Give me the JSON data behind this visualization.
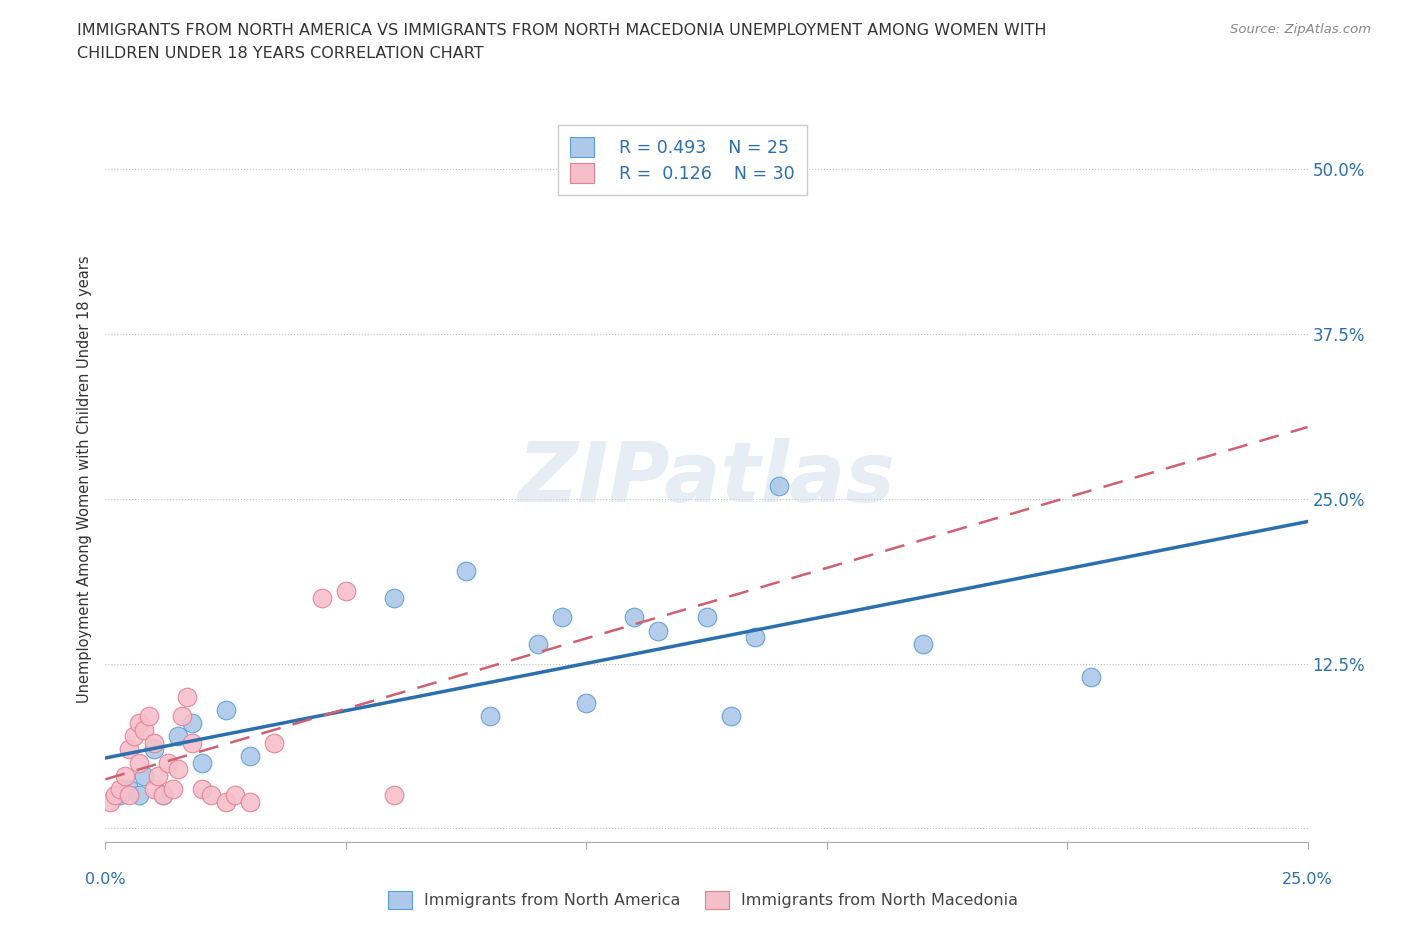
{
  "title_line1": "IMMIGRANTS FROM NORTH AMERICA VS IMMIGRANTS FROM NORTH MACEDONIA UNEMPLOYMENT AMONG WOMEN WITH",
  "title_line2": "CHILDREN UNDER 18 YEARS CORRELATION CHART",
  "source": "Source: ZipAtlas.com",
  "ylabel": "Unemployment Among Women with Children Under 18 years",
  "xlim": [
    0.0,
    0.25
  ],
  "ylim": [
    -0.01,
    0.54
  ],
  "yticks": [
    0.0,
    0.125,
    0.25,
    0.375,
    0.5
  ],
  "ytick_labels_right": [
    "",
    "12.5%",
    "25.0%",
    "37.5%",
    "50.0%"
  ],
  "xticks": [
    0.0,
    0.05,
    0.1,
    0.15,
    0.2,
    0.25
  ],
  "blue_scatter_x": [
    0.003,
    0.005,
    0.007,
    0.008,
    0.01,
    0.012,
    0.015,
    0.018,
    0.02,
    0.025,
    0.03,
    0.06,
    0.075,
    0.08,
    0.09,
    0.095,
    0.1,
    0.11,
    0.115,
    0.125,
    0.13,
    0.135,
    0.14,
    0.17,
    0.205
  ],
  "blue_scatter_y": [
    0.025,
    0.03,
    0.025,
    0.04,
    0.06,
    0.025,
    0.07,
    0.08,
    0.05,
    0.09,
    0.055,
    0.175,
    0.195,
    0.085,
    0.14,
    0.16,
    0.095,
    0.16,
    0.15,
    0.16,
    0.085,
    0.145,
    0.26,
    0.14,
    0.115
  ],
  "pink_scatter_x": [
    0.001,
    0.002,
    0.003,
    0.004,
    0.005,
    0.005,
    0.006,
    0.007,
    0.007,
    0.008,
    0.009,
    0.01,
    0.01,
    0.011,
    0.012,
    0.013,
    0.014,
    0.015,
    0.016,
    0.017,
    0.018,
    0.02,
    0.022,
    0.025,
    0.027,
    0.03,
    0.035,
    0.045,
    0.05,
    0.06
  ],
  "pink_scatter_y": [
    0.02,
    0.025,
    0.03,
    0.04,
    0.025,
    0.06,
    0.07,
    0.05,
    0.08,
    0.075,
    0.085,
    0.065,
    0.03,
    0.04,
    0.025,
    0.05,
    0.03,
    0.045,
    0.085,
    0.1,
    0.065,
    0.03,
    0.025,
    0.02,
    0.025,
    0.02,
    0.065,
    0.175,
    0.18,
    0.025
  ],
  "blue_R": 0.493,
  "blue_N": 25,
  "pink_R": 0.126,
  "pink_N": 30,
  "blue_color": "#adc8e8",
  "blue_edge_color": "#5a9fd4",
  "blue_line_color": "#2c6fad",
  "pink_color": "#f5bfca",
  "pink_edge_color": "#e08090",
  "pink_line_color": "#d06070",
  "legend_label_blue": "Immigrants from North America",
  "legend_label_pink": "Immigrants from North Macedonia",
  "watermark": "ZIPatlas",
  "background_color": "#ffffff",
  "grid_color": "#bbbbbb",
  "text_color": "#333333",
  "right_axis_color": "#2c6fad"
}
